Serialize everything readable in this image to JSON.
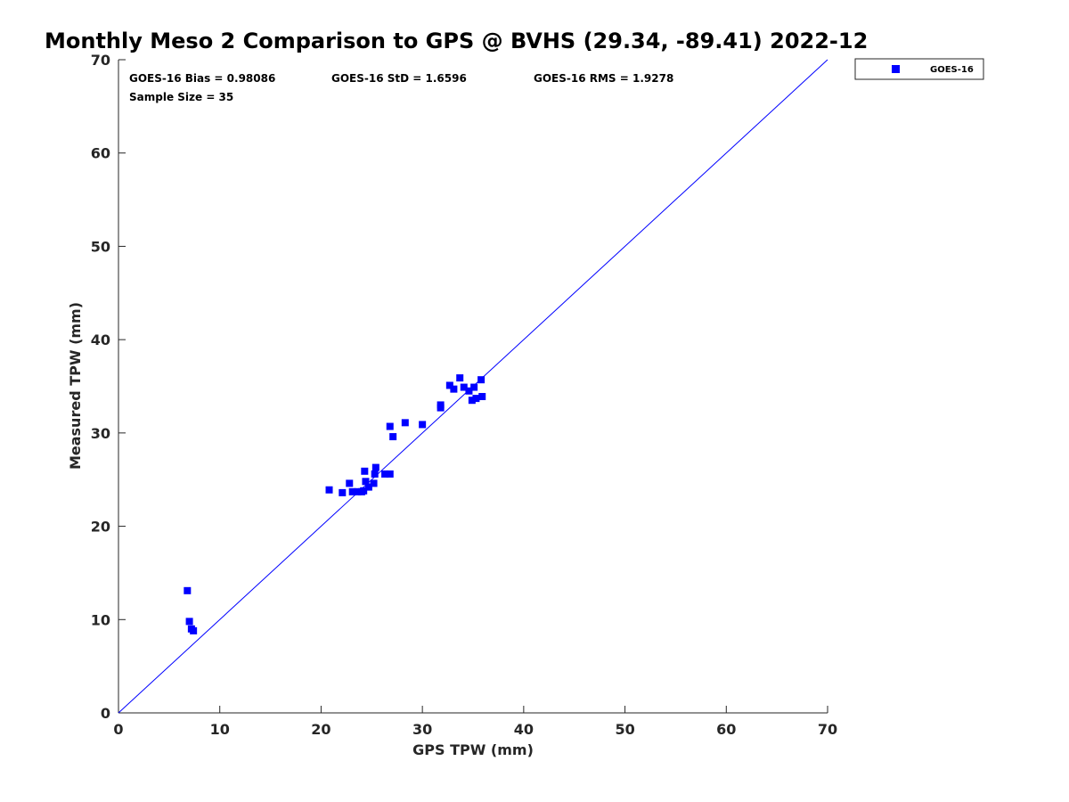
{
  "chart_data": {
    "type": "scatter",
    "title": "Monthly Meso 2 Comparison to GPS @ BVHS (29.34, -89.41) 2022-12",
    "xlabel": "GPS TPW (mm)",
    "ylabel": "Measured TPW (mm)",
    "xlim": [
      0,
      70
    ],
    "ylim": [
      0,
      70
    ],
    "xticks": [
      0,
      10,
      20,
      30,
      40,
      50,
      60,
      70
    ],
    "yticks": [
      0,
      10,
      20,
      30,
      40,
      50,
      60,
      70
    ],
    "grid": false,
    "legend_position": "outside-top-right",
    "reference_line": {
      "name": "1:1",
      "x": [
        0,
        70
      ],
      "y": [
        0,
        70
      ],
      "color": "#0000ff"
    },
    "annotations": {
      "bias": "GOES-16 Bias = 0.98086",
      "std": "GOES-16 StD = 1.6596",
      "rms": "GOES-16 RMS = 1.9278",
      "sample": "Sample Size = 35"
    },
    "series": [
      {
        "name": "GOES-16",
        "color": "#0000ff",
        "marker": "square",
        "points": [
          [
            6.8,
            13.1
          ],
          [
            7.0,
            9.8
          ],
          [
            7.2,
            9.0
          ],
          [
            7.4,
            8.8
          ],
          [
            20.8,
            23.9
          ],
          [
            22.1,
            23.6
          ],
          [
            22.8,
            24.6
          ],
          [
            23.1,
            23.7
          ],
          [
            23.6,
            23.7
          ],
          [
            24.0,
            23.7
          ],
          [
            24.2,
            23.8
          ],
          [
            24.3,
            25.9
          ],
          [
            24.4,
            24.8
          ],
          [
            24.7,
            24.2
          ],
          [
            25.2,
            24.6
          ],
          [
            25.3,
            25.6
          ],
          [
            25.4,
            26.3
          ],
          [
            26.3,
            25.6
          ],
          [
            26.8,
            25.6
          ],
          [
            26.8,
            30.7
          ],
          [
            27.1,
            29.6
          ],
          [
            28.3,
            31.1
          ],
          [
            30.0,
            30.9
          ],
          [
            31.8,
            32.7
          ],
          [
            31.8,
            33.0
          ],
          [
            32.7,
            35.1
          ],
          [
            33.1,
            34.7
          ],
          [
            33.7,
            35.9
          ],
          [
            34.1,
            34.9
          ],
          [
            34.6,
            34.5
          ],
          [
            34.9,
            33.5
          ],
          [
            35.1,
            34.9
          ],
          [
            35.3,
            33.7
          ],
          [
            35.8,
            35.7
          ],
          [
            35.9,
            33.9
          ]
        ]
      }
    ]
  }
}
